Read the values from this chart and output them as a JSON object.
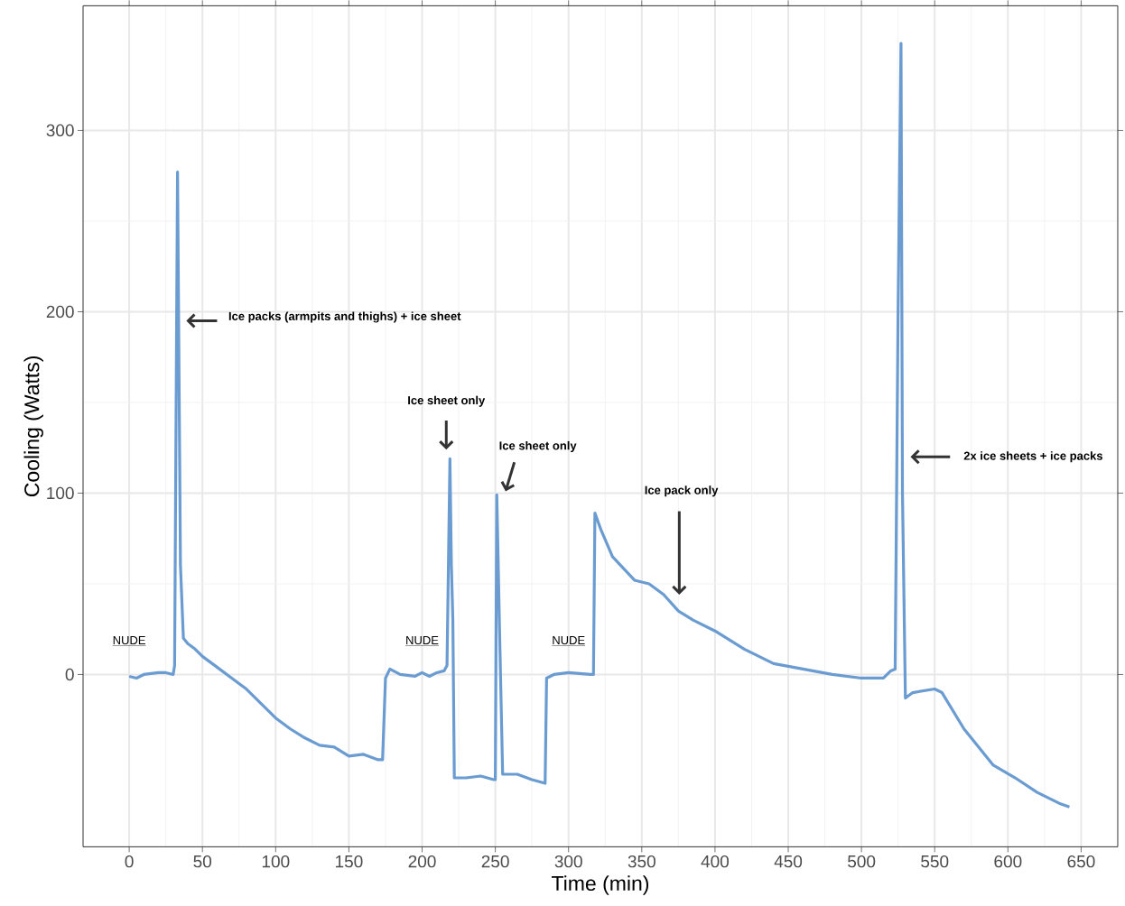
{
  "chart_data": {
    "type": "line",
    "xlabel": "Time (min)",
    "ylabel": "Cooling (Watts)",
    "xlim": [
      -31.5,
      675
    ],
    "ylim": [
      -95,
      368.7
    ],
    "xticks": [
      0,
      50,
      100,
      150,
      200,
      250,
      300,
      350,
      400,
      450,
      500,
      550,
      600,
      650
    ],
    "yticks": [
      0,
      100,
      200,
      300
    ],
    "grid": true,
    "marker": "none",
    "line_style": "solid",
    "series": [
      {
        "color": "#6a9bd1",
        "x": [
          0,
          5,
          10,
          20,
          25,
          30,
          31,
          33,
          35,
          37,
          40,
          45,
          50,
          60,
          70,
          80,
          90,
          100,
          110,
          120,
          130,
          140,
          150,
          160,
          170,
          173,
          175,
          178,
          185,
          195,
          200,
          205,
          210,
          215,
          217,
          219,
          220,
          221,
          222,
          230,
          240,
          249,
          250,
          251,
          253,
          255,
          265,
          275,
          284,
          285,
          290,
          300,
          315,
          317,
          318,
          322,
          330,
          345,
          355,
          365,
          375,
          385,
          400,
          420,
          440,
          460,
          480,
          500,
          515,
          520,
          523,
          525,
          527,
          528,
          530,
          535,
          550,
          555,
          570,
          590,
          605,
          620,
          635,
          642
        ],
        "values": [
          -1,
          -2,
          0,
          1,
          1,
          0,
          5,
          277,
          60,
          20,
          17,
          14,
          10,
          4,
          -2,
          -8,
          -16,
          -24,
          -30,
          -35,
          -39,
          -40,
          -45,
          -44,
          -47,
          -47,
          -2,
          3,
          0,
          -1,
          1,
          -1,
          1,
          2,
          5,
          119,
          60,
          30,
          -57,
          -57,
          -56,
          -58,
          -58,
          99,
          20,
          -55,
          -55,
          -58,
          -60,
          -2,
          0,
          1,
          0,
          0,
          89,
          80,
          65,
          52,
          50,
          44,
          35,
          30,
          24,
          14,
          6,
          3,
          0,
          -2,
          -2,
          2,
          3,
          200,
          348,
          100,
          -13,
          -10,
          -8,
          -10,
          -30,
          -50,
          -57,
          -65,
          -71,
          -73
        ]
      }
    ],
    "annotations": [
      "Ice packs (armpits and thighs) + ice sheet",
      "Ice sheet only",
      "Ice sheet only",
      "Ice pack only",
      "2x ice sheets + ice packs",
      "NUDE",
      "NUDE",
      "NUDE"
    ]
  }
}
